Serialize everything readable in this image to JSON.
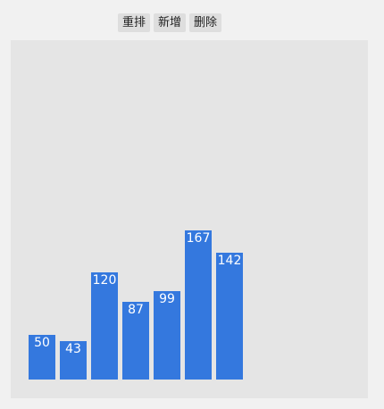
{
  "toolbar": {
    "shuffle_label": "重排",
    "add_label": "新增",
    "delete_label": "删除"
  },
  "chart_data": {
    "type": "bar",
    "values": [
      50,
      43,
      120,
      87,
      99,
      167,
      142
    ],
    "color": "#3478de",
    "background": "#e5e5e5"
  }
}
